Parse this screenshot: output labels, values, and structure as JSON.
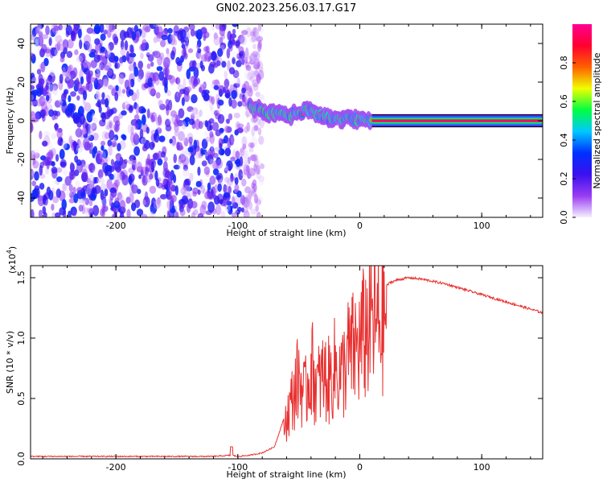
{
  "title": "GN02.2023.256.03.17.G17",
  "chart_data": [
    {
      "type": "heatmap",
      "xlabel": "Height of straight line (km)",
      "ylabel": "Frequency (Hz)",
      "xlim": [
        -270,
        150
      ],
      "ylim": [
        -50,
        50
      ],
      "xticks": [
        "-200",
        "-100",
        "0",
        "100"
      ],
      "yticks": [
        "-40",
        "-20",
        "0",
        "20",
        "40"
      ],
      "colorbar": {
        "label": "Normalized spectral amplitude",
        "range": [
          0,
          1
        ],
        "ticks": [
          "0.0",
          "0.2",
          "0.4",
          "0.6",
          "0.8"
        ],
        "colors": [
          "#f4f0ff",
          "#9a3cf2",
          "#3a10ee",
          "#0030ff",
          "#00c8ff",
          "#00ff40",
          "#f0ff00",
          "#ff6000",
          "#ff0030",
          "#ff0090"
        ]
      },
      "features": {
        "noise_region_x": [
          -270,
          -80
        ],
        "signal_track": {
          "x": [
            -90,
            -80,
            -70,
            -60,
            -50,
            -40,
            -30,
            -20,
            -10,
            0,
            10,
            150
          ],
          "y": [
            8,
            5,
            3,
            3,
            4,
            6,
            2,
            1,
            1,
            0.5,
            0.5,
            0
          ]
        }
      }
    },
    {
      "type": "line",
      "xlabel": "Height of straight line (km)",
      "ylabel": "SNR (10 * v/v)",
      "ylabel_multiplier_base": "(x10",
      "ylabel_multiplier_exp": "4",
      "ylabel_multiplier_end": ")",
      "xlim": [
        -270,
        150
      ],
      "ylim": [
        0,
        1.6
      ],
      "xticks": [
        "-200",
        "-100",
        "0",
        "100"
      ],
      "yticks": [
        "0.0",
        "0.5",
        "1.0",
        "1.5"
      ],
      "series": [
        {
          "color": "#e83030",
          "x": [
            -270,
            -200,
            -120,
            -105,
            -100,
            -90,
            -80,
            -70,
            -60,
            -55,
            -50,
            -45,
            -40,
            -35,
            -30,
            -25,
            -20,
            -15,
            -10,
            -5,
            0,
            5,
            10,
            15,
            20,
            25,
            30,
            40,
            50,
            60,
            70,
            80,
            90,
            100,
            110,
            120,
            130,
            140,
            150
          ],
          "y": [
            0.02,
            0.02,
            0.02,
            0.03,
            0.02,
            0.03,
            0.05,
            0.1,
            0.4,
            0.6,
            0.8,
            0.6,
            0.9,
            0.7,
            0.8,
            0.75,
            0.9,
            0.8,
            1.0,
            1.05,
            1.1,
            1.25,
            1.35,
            1.3,
            1.42,
            1.46,
            1.48,
            1.5,
            1.49,
            1.47,
            1.45,
            1.42,
            1.39,
            1.36,
            1.33,
            1.3,
            1.27,
            1.24,
            1.21
          ]
        }
      ]
    }
  ]
}
